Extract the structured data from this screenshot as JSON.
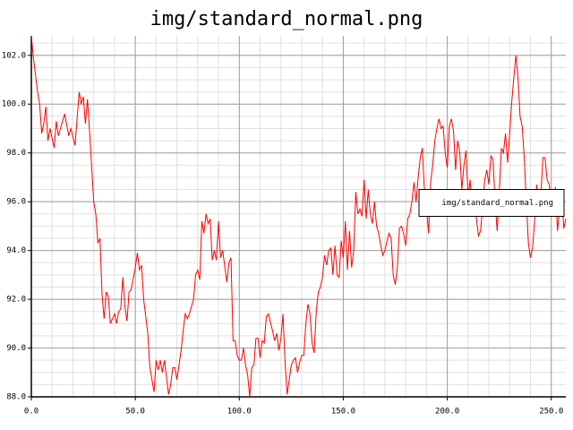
{
  "chart_data": {
    "type": "line",
    "title": "img/standard_normal.png",
    "x": [
      0,
      1,
      3,
      4,
      5,
      6,
      7,
      8,
      9,
      11,
      12,
      13,
      16,
      18,
      19,
      21,
      23,
      24,
      25,
      26,
      27,
      28,
      30,
      31,
      32,
      33,
      34,
      35,
      36,
      37,
      38,
      40,
      41,
      42,
      43,
      44,
      45,
      46,
      47,
      48,
      50,
      51,
      52,
      53,
      54,
      56,
      57,
      59,
      60,
      61,
      62,
      63,
      64,
      65,
      66,
      67,
      68,
      69,
      70,
      72,
      73,
      74,
      75,
      76,
      78,
      79,
      80,
      81,
      82,
      83,
      84,
      85,
      86,
      87,
      88,
      89,
      90,
      91,
      92,
      94,
      95,
      96,
      97,
      98,
      99,
      100,
      101,
      102,
      103,
      104,
      105,
      106,
      107,
      108,
      109,
      110,
      111,
      112,
      113,
      114,
      116,
      117,
      118,
      119,
      120,
      121,
      122,
      123,
      125,
      126,
      127,
      128,
      129,
      130,
      131,
      132,
      133,
      134,
      135,
      136,
      137,
      138,
      139,
      140,
      141,
      142,
      143,
      144,
      145,
      146,
      147,
      148,
      149,
      150,
      151,
      152,
      153,
      154,
      155,
      156,
      157,
      158,
      159,
      160,
      161,
      162,
      163,
      164,
      165,
      166,
      167,
      168,
      169,
      170,
      171,
      172,
      173,
      174,
      175,
      176,
      177,
      178,
      179,
      180,
      181,
      182,
      183,
      184,
      185,
      186,
      187,
      188,
      189,
      190,
      191,
      192,
      193,
      194,
      195,
      196,
      197,
      198,
      199,
      200,
      201,
      202,
      203,
      204,
      205,
      206,
      207,
      208,
      209,
      210,
      211,
      212,
      213,
      214,
      215,
      216,
      217,
      218,
      219,
      220,
      221,
      222,
      223,
      224,
      225,
      226,
      227,
      228,
      229,
      230,
      231,
      232,
      233,
      234,
      235,
      236,
      237,
      238,
      239,
      240,
      241,
      242,
      243,
      244,
      245,
      246,
      247,
      248,
      249,
      250,
      251,
      252,
      253,
      254,
      255,
      256,
      257
    ],
    "series": [
      {
        "name": "img/standard_normal.png",
        "color": "#ff0000",
        "values": [
          102.8,
          101.9,
          100.5,
          100.0,
          98.8,
          99.2,
          99.9,
          98.5,
          99.0,
          98.2,
          99.3,
          98.7,
          99.6,
          98.7,
          99.0,
          98.3,
          100.5,
          100.0,
          100.3,
          99.2,
          100.2,
          98.9,
          96.0,
          95.5,
          94.3,
          94.5,
          92.2,
          91.2,
          92.3,
          92.1,
          91.0,
          91.4,
          91.0,
          91.5,
          91.6,
          92.9,
          91.7,
          91.1,
          92.3,
          92.4,
          93.3,
          93.9,
          93.2,
          93.4,
          92.0,
          90.6,
          89.2,
          88.2,
          89.5,
          89.1,
          89.5,
          89.0,
          89.5,
          88.8,
          88.1,
          88.5,
          89.2,
          89.2,
          88.7,
          89.9,
          90.7,
          91.4,
          91.2,
          91.4,
          92.0,
          93.0,
          93.2,
          92.8,
          95.2,
          94.7,
          95.5,
          95.1,
          95.3,
          93.6,
          94.0,
          93.6,
          95.2,
          93.7,
          94.0,
          92.7,
          93.5,
          93.7,
          90.3,
          90.3,
          89.7,
          89.5,
          89.5,
          90.0,
          89.3,
          88.9,
          88.0,
          89.2,
          89.3,
          90.4,
          90.4,
          89.6,
          90.3,
          90.2,
          91.3,
          91.4,
          90.7,
          90.3,
          90.6,
          89.9,
          90.4,
          91.4,
          89.4,
          88.1,
          89.3,
          89.5,
          89.6,
          89.0,
          89.4,
          89.7,
          89.7,
          91.0,
          91.8,
          91.4,
          90.2,
          89.8,
          91.5,
          92.3,
          92.5,
          92.9,
          93.8,
          93.4,
          94.0,
          94.1,
          93.0,
          94.2,
          93.0,
          92.9,
          94.4,
          93.7,
          95.2,
          93.2,
          94.8,
          93.3,
          94.0,
          96.4,
          95.5,
          95.7,
          95.4,
          96.9,
          95.3,
          96.5,
          95.5,
          95.1,
          96.0,
          95.0,
          94.7,
          94.2,
          93.8,
          94.0,
          94.4,
          94.7,
          94.5,
          93.0,
          92.6,
          93.3,
          94.9,
          95.0,
          94.7,
          94.2,
          95.3,
          95.5,
          96.0,
          96.8,
          96.0,
          97.0,
          97.8,
          98.2,
          96.5,
          95.8,
          94.7,
          96.8,
          97.5,
          98.5,
          99.0,
          99.4,
          99.0,
          99.1,
          98.0,
          97.4,
          99.1,
          99.4,
          98.9,
          97.3,
          98.5,
          98.0,
          96.5,
          97.5,
          98.1,
          96.2,
          96.9,
          95.5,
          96.1,
          95.3,
          94.6,
          94.8,
          95.8,
          96.9,
          97.3,
          96.7,
          97.9,
          97.7,
          96.0,
          94.8,
          96.4,
          98.2,
          98.0,
          98.8,
          97.6,
          98.8,
          100.1,
          101.1,
          102.0,
          101.1,
          99.5,
          99.1,
          97.8,
          96.0,
          94.3,
          93.7,
          94.1,
          95.2,
          96.7,
          95.5,
          96.3,
          97.8,
          97.8,
          96.9,
          96.7,
          96.0,
          95.4,
          96.6,
          94.8,
          95.7,
          96.4,
          94.9,
          95.3
        ]
      }
    ],
    "xlim": [
      0,
      257
    ],
    "ylim": [
      88,
      102.8
    ],
    "xticks": [
      {
        "value": 0,
        "label": "0.0"
      },
      {
        "value": 50,
        "label": "50.0"
      },
      {
        "value": 100,
        "label": "100.0"
      },
      {
        "value": 150,
        "label": "150.0"
      },
      {
        "value": 200,
        "label": "200.0"
      },
      {
        "value": 250,
        "label": "250.0"
      }
    ],
    "yticks": [
      {
        "value": 88,
        "label": "88.0"
      },
      {
        "value": 90,
        "label": "90.0"
      },
      {
        "value": 92,
        "label": "92.0"
      },
      {
        "value": 94,
        "label": "94.0"
      },
      {
        "value": 96,
        "label": "96.0"
      },
      {
        "value": 98,
        "label": "98.0"
      },
      {
        "value": 100,
        "label": "100.0"
      },
      {
        "value": 102,
        "label": "102.0"
      }
    ],
    "grid": true,
    "minor_grid": true,
    "legend": "right"
  }
}
